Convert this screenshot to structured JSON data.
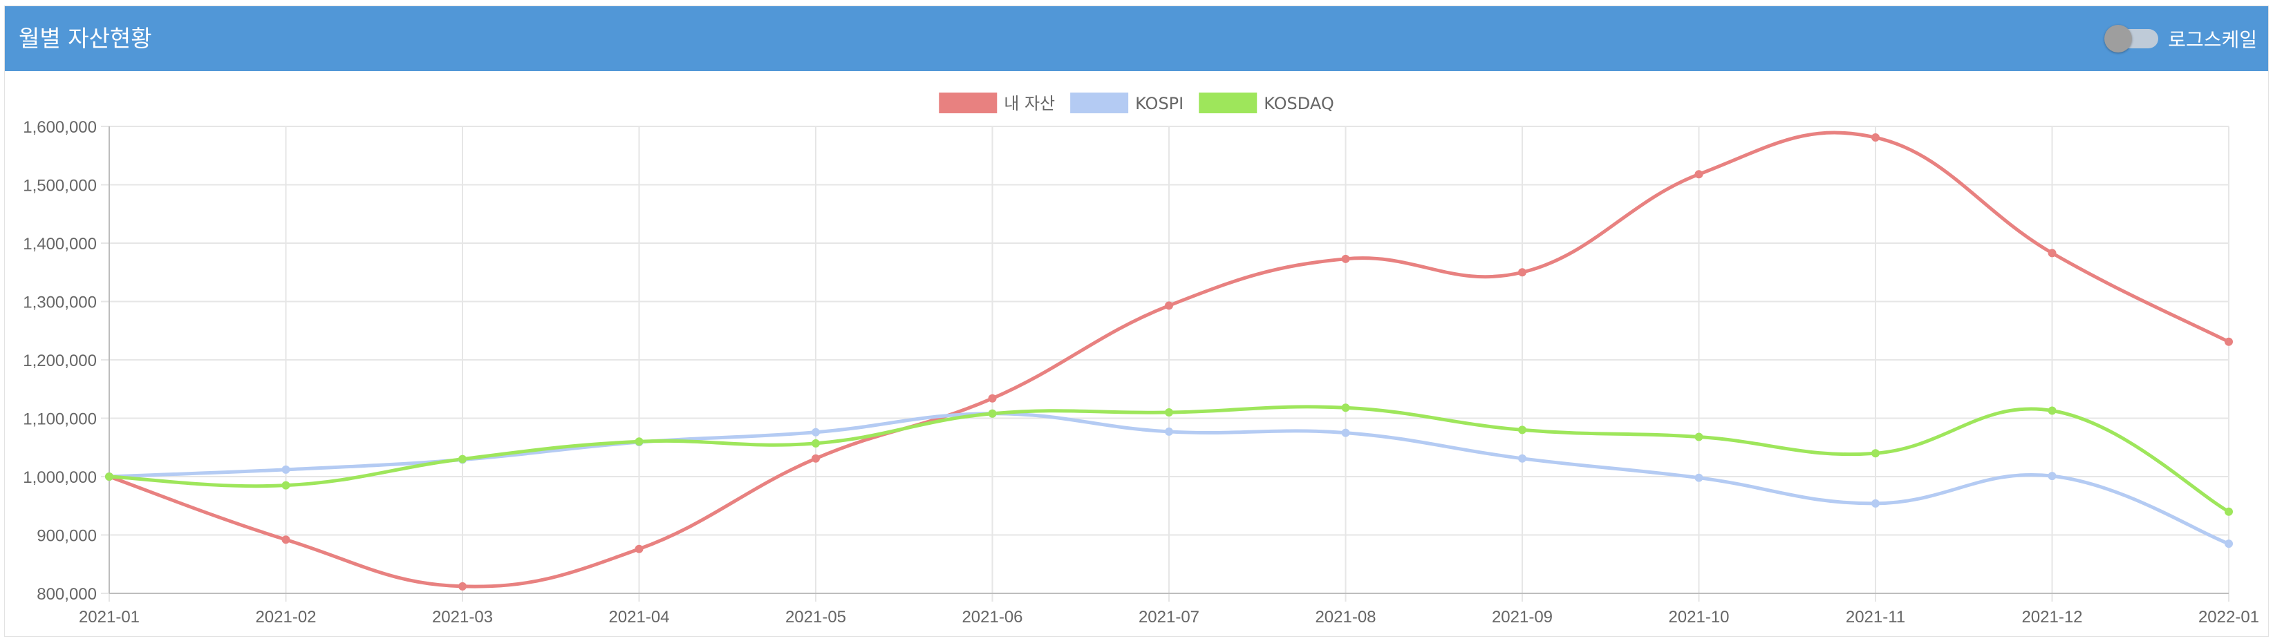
{
  "header": {
    "title": "월별 자산현황",
    "log_scale_label": "로그스케일",
    "log_scale_on": false
  },
  "chart_data": {
    "type": "line",
    "title": "",
    "xlabel": "",
    "ylabel": "",
    "categories": [
      "2021-01",
      "2021-02",
      "2021-03",
      "2021-04",
      "2021-05",
      "2021-06",
      "2021-07",
      "2021-08",
      "2021-09",
      "2021-10",
      "2021-11",
      "2021-12",
      "2022-01"
    ],
    "ylim": [
      800000,
      1600000
    ],
    "yticks": [
      800000,
      900000,
      1000000,
      1100000,
      1200000,
      1300000,
      1400000,
      1500000,
      1600000
    ],
    "ytick_labels": [
      "800,000",
      "900,000",
      "1,000,000",
      "1,100,000",
      "1,200,000",
      "1,300,000",
      "1,400,000",
      "1,500,000",
      "1,600,000"
    ],
    "grid": true,
    "legend_position": "top",
    "series": [
      {
        "name": "내 자산",
        "color": "#e88180",
        "values": [
          1000000,
          892000,
          812000,
          876000,
          1031000,
          1134000,
          1293000,
          1373000,
          1350000,
          1518000,
          1581000,
          1383000,
          1231000
        ]
      },
      {
        "name": "KOSPI",
        "color": "#b4cbf3",
        "values": [
          1000000,
          1012000,
          1029000,
          1059000,
          1076000,
          1108000,
          1077000,
          1075000,
          1031000,
          998000,
          954000,
          1001000,
          885000
        ]
      },
      {
        "name": "KOSDAQ",
        "color": "#9ee65b",
        "values": [
          1000000,
          985000,
          1030000,
          1060000,
          1057000,
          1108000,
          1110000,
          1118000,
          1080000,
          1068000,
          1040000,
          1113000,
          940000
        ]
      }
    ]
  }
}
